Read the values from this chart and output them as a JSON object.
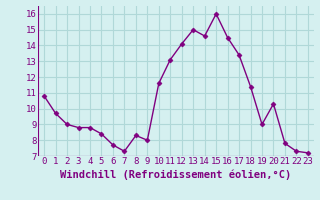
{
  "x": [
    0,
    1,
    2,
    3,
    4,
    5,
    6,
    7,
    8,
    9,
    10,
    11,
    12,
    13,
    14,
    15,
    16,
    17,
    18,
    19,
    20,
    21,
    22,
    23
  ],
  "y": [
    10.8,
    9.7,
    9.0,
    8.8,
    8.8,
    8.4,
    7.7,
    7.3,
    8.3,
    8.0,
    11.6,
    13.1,
    14.1,
    15.0,
    14.6,
    16.0,
    14.5,
    13.4,
    11.4,
    9.0,
    10.3,
    7.8,
    7.3,
    7.2
  ],
  "line_color": "#800080",
  "marker": "D",
  "marker_size": 2.5,
  "bg_color": "#d5f0f0",
  "grid_color": "#b0d8d8",
  "xlabel": "Windchill (Refroidissement éolien,°C)",
  "xlabel_color": "#800080",
  "tick_label_color": "#800080",
  "ylim": [
    7,
    16.5
  ],
  "yticks": [
    7,
    8,
    9,
    10,
    11,
    12,
    13,
    14,
    15,
    16
  ],
  "xticks": [
    0,
    1,
    2,
    3,
    4,
    5,
    6,
    7,
    8,
    9,
    10,
    11,
    12,
    13,
    14,
    15,
    16,
    17,
    18,
    19,
    20,
    21,
    22,
    23
  ],
  "line_width": 1.0,
  "tick_fontsize": 6.5,
  "xlabel_fontsize": 7.5
}
